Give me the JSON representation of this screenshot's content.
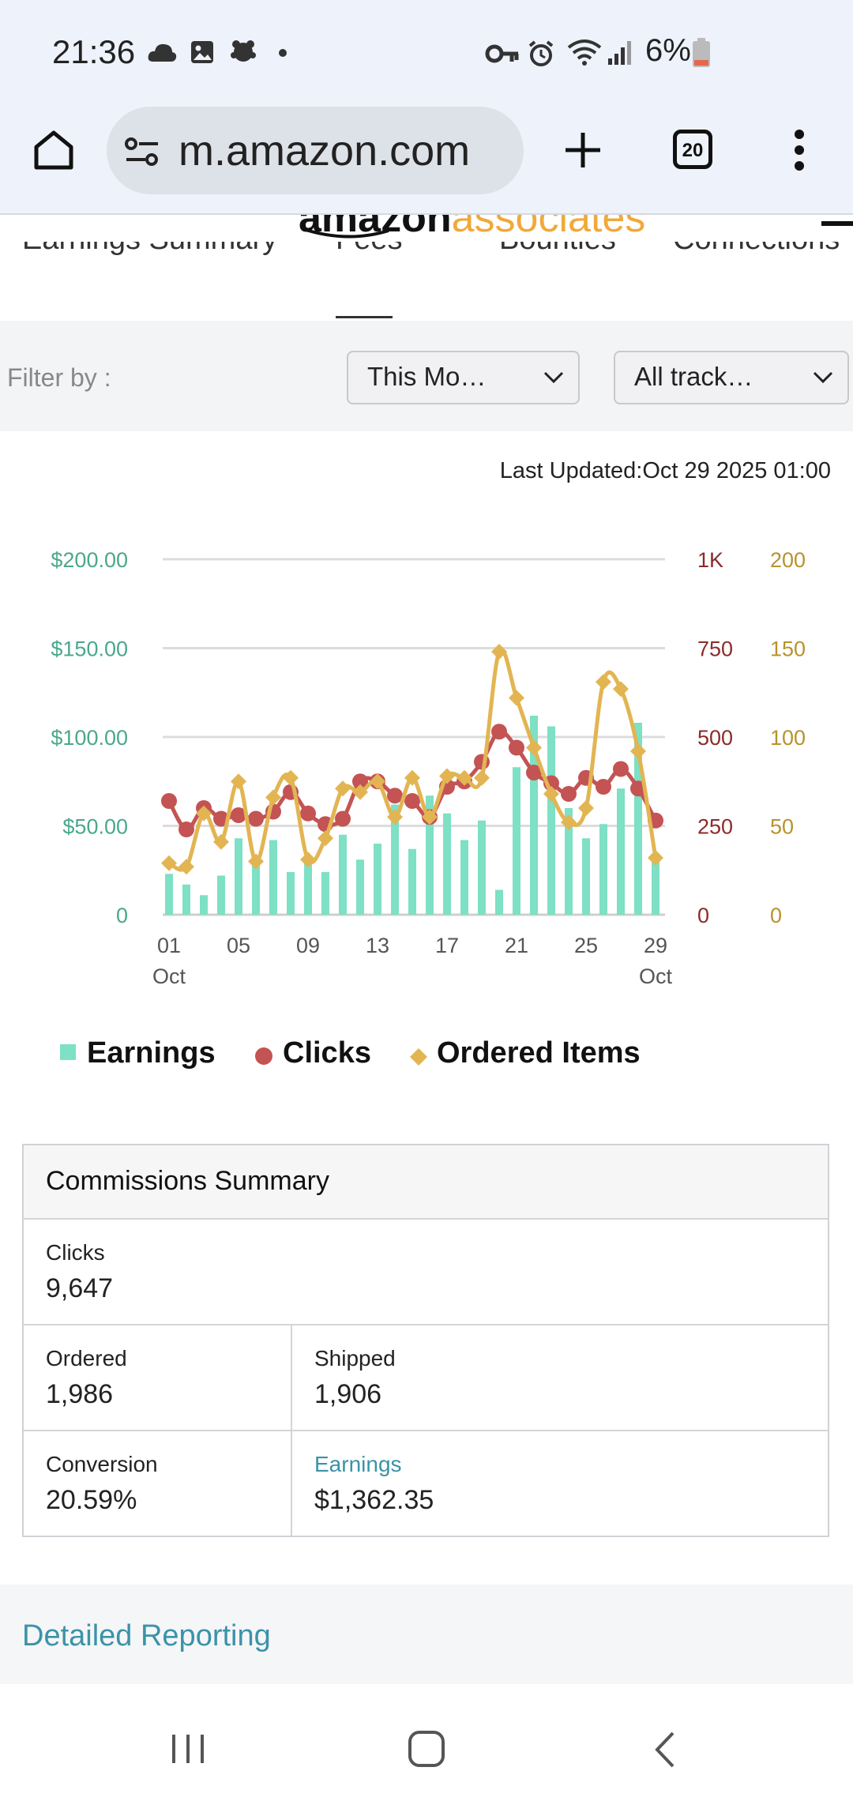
{
  "status_bar": {
    "time": "21:36",
    "battery": "6%",
    "icons": [
      "cloud-icon",
      "image-icon",
      "bug-icon",
      "dot-icon",
      "key-icon",
      "alarm-icon",
      "wifi-icon",
      "signal-icon",
      "battery-icon"
    ]
  },
  "browser": {
    "url": "m.amazon.com",
    "tab_count": "20"
  },
  "site": {
    "logo_text_dark": "amazon",
    "logo_text_orange": "associates",
    "tabs": [
      "Earnings Summary",
      "Fees",
      "Bounties",
      "Connections"
    ],
    "active_tab": 1
  },
  "filters": {
    "label": "Filter by :",
    "period": "This Mo…",
    "tracking": "All track…"
  },
  "last_updated": "Last Updated:Oct 29 2025 01:00",
  "chart_data": {
    "type": "bar+line",
    "x_ticks": [
      "01",
      "05",
      "09",
      "13",
      "17",
      "21",
      "25",
      "29"
    ],
    "x_tick_sub_first": "Oct",
    "x_tick_sub_last": "Oct",
    "left_axis": {
      "ticks": [
        "$200.00",
        "$150.00",
        "$100.00",
        "$50.00",
        "0"
      ],
      "range": [
        0,
        200
      ]
    },
    "right_axis_clicks": {
      "ticks": [
        "1K",
        "750",
        "500",
        "250",
        "0"
      ],
      "range": [
        0,
        1000
      ]
    },
    "right_axis_items": {
      "ticks": [
        "200",
        "150",
        "100",
        "50",
        "0"
      ],
      "range": [
        0,
        200
      ]
    },
    "days": [
      1,
      2,
      3,
      4,
      5,
      6,
      7,
      8,
      9,
      10,
      11,
      12,
      13,
      14,
      15,
      16,
      17,
      18,
      19,
      20,
      21,
      22,
      23,
      24,
      25,
      26,
      27,
      28,
      29
    ],
    "series": [
      {
        "name": "Earnings",
        "type": "bar",
        "axis": "left",
        "color": "#7ee0c4",
        "values": [
          23,
          17,
          11,
          22,
          43,
          28,
          42,
          24,
          30,
          24,
          45,
          31,
          40,
          62,
          37,
          67,
          57,
          42,
          53,
          14,
          83,
          112,
          106,
          60,
          43,
          51,
          71,
          108,
          33
        ]
      },
      {
        "name": "Clicks",
        "type": "line",
        "axis": "clicks",
        "color": "#c45353",
        "values": [
          320,
          240,
          300,
          270,
          280,
          270,
          290,
          345,
          285,
          255,
          270,
          375,
          375,
          335,
          320,
          275,
          360,
          375,
          430,
          515,
          470,
          400,
          370,
          340,
          385,
          360,
          410,
          355,
          265
        ]
      },
      {
        "name": "Ordered Items",
        "type": "line",
        "axis": "items",
        "color": "#e2b552",
        "values": [
          29,
          27,
          57,
          41,
          75,
          30,
          66,
          77,
          31,
          43,
          71,
          69,
          75,
          55,
          77,
          55,
          78,
          77,
          77,
          148,
          122,
          94,
          68,
          52,
          60,
          131,
          127,
          92,
          32
        ]
      }
    ]
  },
  "legend": [
    "Earnings",
    "Clicks",
    "Ordered Items"
  ],
  "commissions": {
    "title": "Commissions Summary",
    "clicks_label": "Clicks",
    "clicks_value": "9,647",
    "ordered_label": "Ordered",
    "ordered_value": "1,986",
    "shipped_label": "Shipped",
    "shipped_value": "1,906",
    "conversion_label": "Conversion",
    "conversion_value": "20.59%",
    "earnings_label": "Earnings",
    "earnings_value": "$1,362.35"
  },
  "detailed_reporting": "Detailed Reporting",
  "colors": {
    "accent_teal": "#3a93a8",
    "earnings_bar": "#7ee0c4",
    "clicks": "#c45353",
    "items": "#e2b552",
    "axis_left": "#4aa88c",
    "axis_clicks": "#8c2b2b",
    "axis_items": "#b8922c"
  }
}
